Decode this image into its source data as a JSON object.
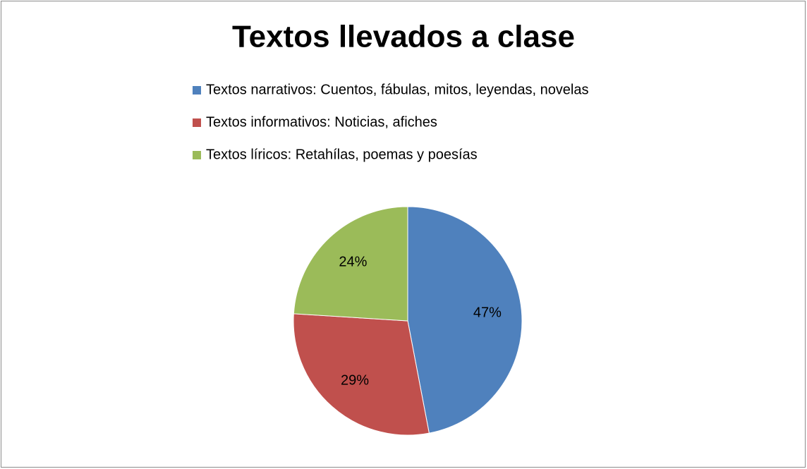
{
  "chart_data": {
    "type": "pie",
    "title": "Textos llevados a clase",
    "categories": [
      "Textos narrativos: Cuentos, fábulas, mitos, leyendas, novelas",
      "Textos informativos: Noticias, afiches",
      "Textos líricos: Retahílas, poemas y poesías"
    ],
    "values": [
      47,
      29,
      24
    ],
    "value_labels": [
      "47%",
      "29%",
      "24%"
    ],
    "colors": [
      "#4f81bd",
      "#c0504d",
      "#9bbb59"
    ],
    "legend": "top"
  }
}
